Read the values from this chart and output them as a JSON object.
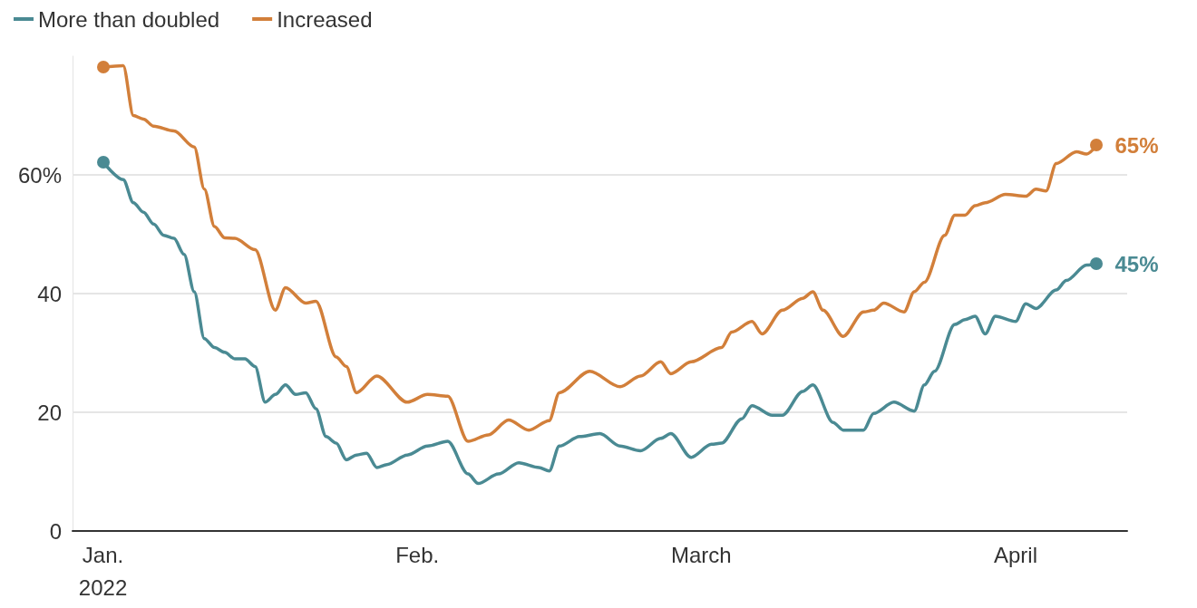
{
  "chart_data": {
    "type": "line",
    "legend": "top left",
    "grid": "y",
    "line_style": "solid",
    "xlim": [
      "2021-12-29",
      "2022-04-12"
    ],
    "xticks": [
      {
        "value": "2022-01-01",
        "label": "Jan.\n2022"
      },
      {
        "value": "2022-02-01",
        "label": "Feb."
      },
      {
        "value": "2022-03-01",
        "label": "March"
      },
      {
        "value": "2022-04-01",
        "label": "April"
      }
    ],
    "ylim": [
      0,
      80
    ],
    "yticks": [
      0,
      20,
      40,
      {
        "value": 60,
        "label": "60%"
      }
    ],
    "series": [
      {
        "name": "More than doubled",
        "color": "#4a8a93",
        "x": [
          "2022-01-01",
          "2022-01-03",
          "2022-01-04",
          "2022-01-05",
          "2022-01-06",
          "2022-01-07",
          "2022-01-08",
          "2022-01-09",
          "2022-01-10",
          "2022-01-11",
          "2022-01-12",
          "2022-01-13",
          "2022-01-14",
          "2022-01-15",
          "2022-01-16",
          "2022-01-17",
          "2022-01-18",
          "2022-01-19",
          "2022-01-20",
          "2022-01-21",
          "2022-01-22",
          "2022-01-23",
          "2022-01-24",
          "2022-01-25",
          "2022-01-26",
          "2022-01-27",
          "2022-01-28",
          "2022-01-29",
          "2022-01-31",
          "2022-02-02",
          "2022-02-04",
          "2022-02-06",
          "2022-02-07",
          "2022-02-09",
          "2022-02-11",
          "2022-02-13",
          "2022-02-14",
          "2022-02-15",
          "2022-02-17",
          "2022-02-19",
          "2022-02-21",
          "2022-02-23",
          "2022-02-25",
          "2022-02-26",
          "2022-02-28",
          "2022-03-02",
          "2022-03-03",
          "2022-03-05",
          "2022-03-06",
          "2022-03-08",
          "2022-03-09",
          "2022-03-11",
          "2022-03-12",
          "2022-03-14",
          "2022-03-15",
          "2022-03-17",
          "2022-03-18",
          "2022-03-20",
          "2022-03-22",
          "2022-03-23",
          "2022-03-24",
          "2022-03-26",
          "2022-03-27",
          "2022-03-28",
          "2022-03-29",
          "2022-03-30",
          "2022-04-01",
          "2022-04-02",
          "2022-04-03",
          "2022-04-05",
          "2022-04-06",
          "2022-04-08",
          "2022-04-09"
        ],
        "values": [
          62.2,
          59.2,
          55.3,
          53.7,
          51.7,
          49.8,
          49.3,
          46.6,
          40.3,
          32.4,
          30.9,
          30.1,
          29,
          29,
          27.7,
          21.7,
          23,
          24.6,
          23,
          23.3,
          20.6,
          15.9,
          14.8,
          12,
          12.8,
          13.1,
          10.7,
          11.2,
          12.8,
          14.3,
          15.1,
          9.6,
          8,
          9.6,
          11.5,
          10.7,
          10.1,
          14.3,
          15.9,
          16.4,
          14.3,
          13.5,
          15.6,
          16.4,
          12.4,
          14.6,
          14.8,
          18.9,
          21.1,
          19.5,
          19.5,
          23.5,
          24.6,
          18.3,
          17,
          17,
          19.8,
          21.7,
          20.2,
          24.6,
          26.9,
          34.8,
          35.6,
          36.2,
          33.2,
          36.2,
          35.3,
          38.3,
          37.5,
          40.6,
          42.2,
          44.8,
          45
        ],
        "value_labels": [
          null,
          null,
          null,
          null,
          null,
          null,
          null,
          null,
          null,
          null,
          null,
          null,
          null,
          null,
          null,
          null,
          null,
          null,
          null,
          null,
          null,
          null,
          null,
          null,
          null,
          null,
          null,
          null,
          null,
          null,
          null,
          null,
          null,
          null,
          null,
          null,
          null,
          null,
          null,
          null,
          null,
          null,
          null,
          null,
          null,
          null,
          null,
          null,
          null,
          null,
          null,
          null,
          null,
          null,
          null,
          null,
          null,
          null,
          null,
          null,
          null,
          null,
          null,
          null,
          null,
          null,
          null,
          null,
          null,
          null,
          null,
          null,
          "45%"
        ]
      },
      {
        "name": "Increased",
        "color": "#d27f3a",
        "x": [
          "2022-01-01",
          "2022-01-03",
          "2022-01-04",
          "2022-01-05",
          "2022-01-06",
          "2022-01-08",
          "2022-01-10",
          "2022-01-11",
          "2022-01-12",
          "2022-01-13",
          "2022-01-14",
          "2022-01-16",
          "2022-01-18",
          "2022-01-19",
          "2022-01-21",
          "2022-01-22",
          "2022-01-24",
          "2022-01-25",
          "2022-01-26",
          "2022-01-28",
          "2022-01-31",
          "2022-02-02",
          "2022-02-04",
          "2022-02-06",
          "2022-02-08",
          "2022-02-10",
          "2022-02-12",
          "2022-02-14",
          "2022-02-15",
          "2022-02-18",
          "2022-02-21",
          "2022-02-23",
          "2022-02-25",
          "2022-02-26",
          "2022-02-28",
          "2022-03-03",
          "2022-03-04",
          "2022-03-06",
          "2022-03-07",
          "2022-03-09",
          "2022-03-11",
          "2022-03-12",
          "2022-03-13",
          "2022-03-15",
          "2022-03-17",
          "2022-03-18",
          "2022-03-19",
          "2022-03-21",
          "2022-03-22",
          "2022-03-23",
          "2022-03-25",
          "2022-03-26",
          "2022-03-27",
          "2022-03-28",
          "2022-03-29",
          "2022-03-31",
          "2022-04-02",
          "2022-04-03",
          "2022-04-04",
          "2022-04-05",
          "2022-04-07",
          "2022-04-08",
          "2022-04-09"
        ],
        "values": [
          78.1,
          78.4,
          70,
          69.4,
          68.2,
          67.4,
          64.7,
          57.6,
          51.3,
          49.4,
          49.3,
          47.4,
          37.2,
          41,
          38.4,
          38.7,
          29.3,
          27.7,
          23.3,
          26.1,
          21.7,
          23,
          22.7,
          15.1,
          16.2,
          18.7,
          17,
          18.6,
          23.3,
          26.9,
          24.3,
          26.1,
          28.5,
          26.5,
          28.5,
          30.9,
          33.5,
          35.3,
          33.2,
          37.2,
          39.2,
          40.3,
          37.2,
          32.8,
          36.9,
          37.2,
          38.4,
          36.9,
          40.3,
          41.9,
          49.8,
          53.2,
          53.2,
          54.8,
          55.3,
          56.7,
          56.4,
          57.6,
          57.3,
          61.9,
          63.9,
          63.5,
          65
        ],
        "value_labels": [
          null,
          null,
          null,
          null,
          null,
          null,
          null,
          null,
          null,
          null,
          null,
          null,
          null,
          null,
          null,
          null,
          null,
          null,
          null,
          null,
          null,
          null,
          null,
          null,
          null,
          null,
          null,
          null,
          null,
          null,
          null,
          null,
          null,
          null,
          null,
          null,
          null,
          null,
          null,
          null,
          null,
          null,
          null,
          null,
          null,
          null,
          null,
          null,
          null,
          null,
          null,
          null,
          null,
          null,
          null,
          null,
          null,
          null,
          null,
          null,
          null,
          null,
          "65%"
        ]
      }
    ]
  }
}
